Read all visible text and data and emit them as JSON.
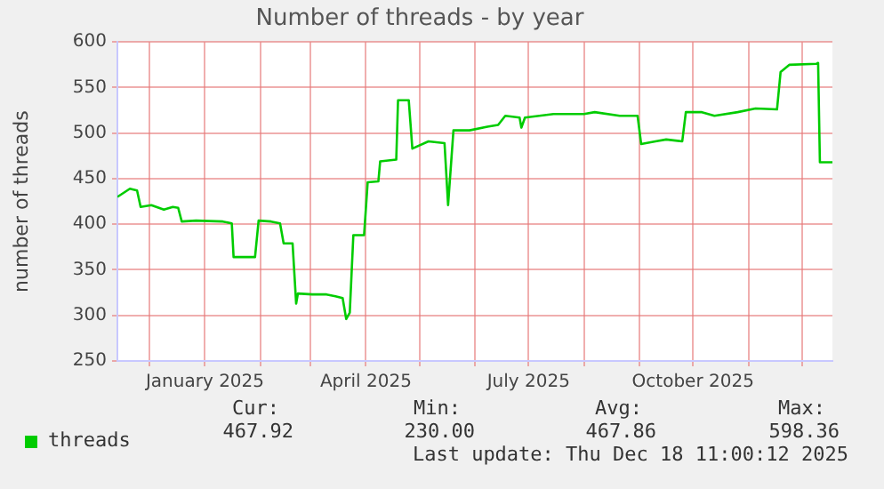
{
  "chart_data": {
    "type": "line",
    "title": "Number of threads - by year",
    "ylabel": "number of threads",
    "xlim": [
      "2024-11-13",
      "2025-12-18"
    ],
    "xticks": [
      {
        "value": "2024-12-01",
        "label": null
      },
      {
        "value": "2025-01-01",
        "label": "January 2025"
      },
      {
        "value": "2025-02-01",
        "label": null
      },
      {
        "value": "2025-03-01",
        "label": null
      },
      {
        "value": "2025-04-01",
        "label": "April 2025"
      },
      {
        "value": "2025-05-01",
        "label": null
      },
      {
        "value": "2025-06-01",
        "label": null
      },
      {
        "value": "2025-07-01",
        "label": "July 2025"
      },
      {
        "value": "2025-08-01",
        "label": null
      },
      {
        "value": "2025-09-01",
        "label": null
      },
      {
        "value": "2025-10-01",
        "label": "October 2025"
      },
      {
        "value": "2025-11-01",
        "label": null
      },
      {
        "value": "2025-12-01",
        "label": null
      }
    ],
    "ylim": [
      250,
      600
    ],
    "yticks": [
      250,
      300,
      350,
      400,
      450,
      500,
      550,
      600
    ],
    "grid": true,
    "legend": "bottom",
    "marker": "none",
    "series": [
      {
        "name": "threads",
        "color": "#00cc00",
        "x": [
          "2024-11-13",
          "2024-11-20",
          "2024-11-24",
          "2024-11-26",
          "2024-12-02",
          "2024-12-09",
          "2024-12-14",
          "2024-12-17",
          "2024-12-19",
          "2024-12-27",
          "2025-01-11",
          "2025-01-16",
          "2025-01-17",
          "2025-01-29",
          "2025-01-31",
          "2025-02-07",
          "2025-02-12",
          "2025-02-14",
          "2025-02-19",
          "2025-02-21",
          "2025-02-22",
          "2025-03-02",
          "2025-03-10",
          "2025-03-15",
          "2025-03-19",
          "2025-03-21",
          "2025-03-23",
          "2025-03-25",
          "2025-03-31",
          "2025-04-02",
          "2025-04-08",
          "2025-04-09",
          "2025-04-18",
          "2025-04-19",
          "2025-04-25",
          "2025-04-27",
          "2025-05-06",
          "2025-05-15",
          "2025-05-17",
          "2025-05-20",
          "2025-05-29",
          "2025-06-08",
          "2025-06-14",
          "2025-06-18",
          "2025-06-26",
          "2025-06-27",
          "2025-06-29",
          "2025-07-15",
          "2025-08-01",
          "2025-08-07",
          "2025-08-21",
          "2025-08-31",
          "2025-09-02",
          "2025-09-10",
          "2025-09-16",
          "2025-09-25",
          "2025-09-27",
          "2025-10-06",
          "2025-10-13",
          "2025-10-26",
          "2025-11-05",
          "2025-11-17",
          "2025-11-19",
          "2025-11-24",
          "2025-12-09",
          "2025-12-10",
          "2025-12-11",
          "2025-12-18"
        ],
        "values": [
          430,
          439,
          437,
          419,
          421,
          416,
          419,
          418,
          403,
          404,
          403,
          401,
          364,
          364,
          404,
          403,
          401,
          379,
          379,
          313,
          324,
          323,
          323,
          321,
          319,
          296,
          303,
          388,
          388,
          446,
          447,
          469,
          471,
          536,
          536,
          483,
          491,
          489,
          421,
          503,
          503,
          507,
          509,
          519,
          517,
          506,
          517,
          521,
          521,
          523,
          519,
          519,
          488,
          491,
          493,
          491,
          523,
          523,
          519,
          523,
          527,
          526,
          567,
          575,
          576,
          577,
          468,
          468
        ]
      }
    ],
    "annotations": [
      "Cur:",
      "Min:",
      "Avg:",
      "Max:",
      "467.92",
      "230.00",
      "467.86",
      "598.36",
      "Last update: Thu Dec 18 11:00:12 2025"
    ]
  }
}
